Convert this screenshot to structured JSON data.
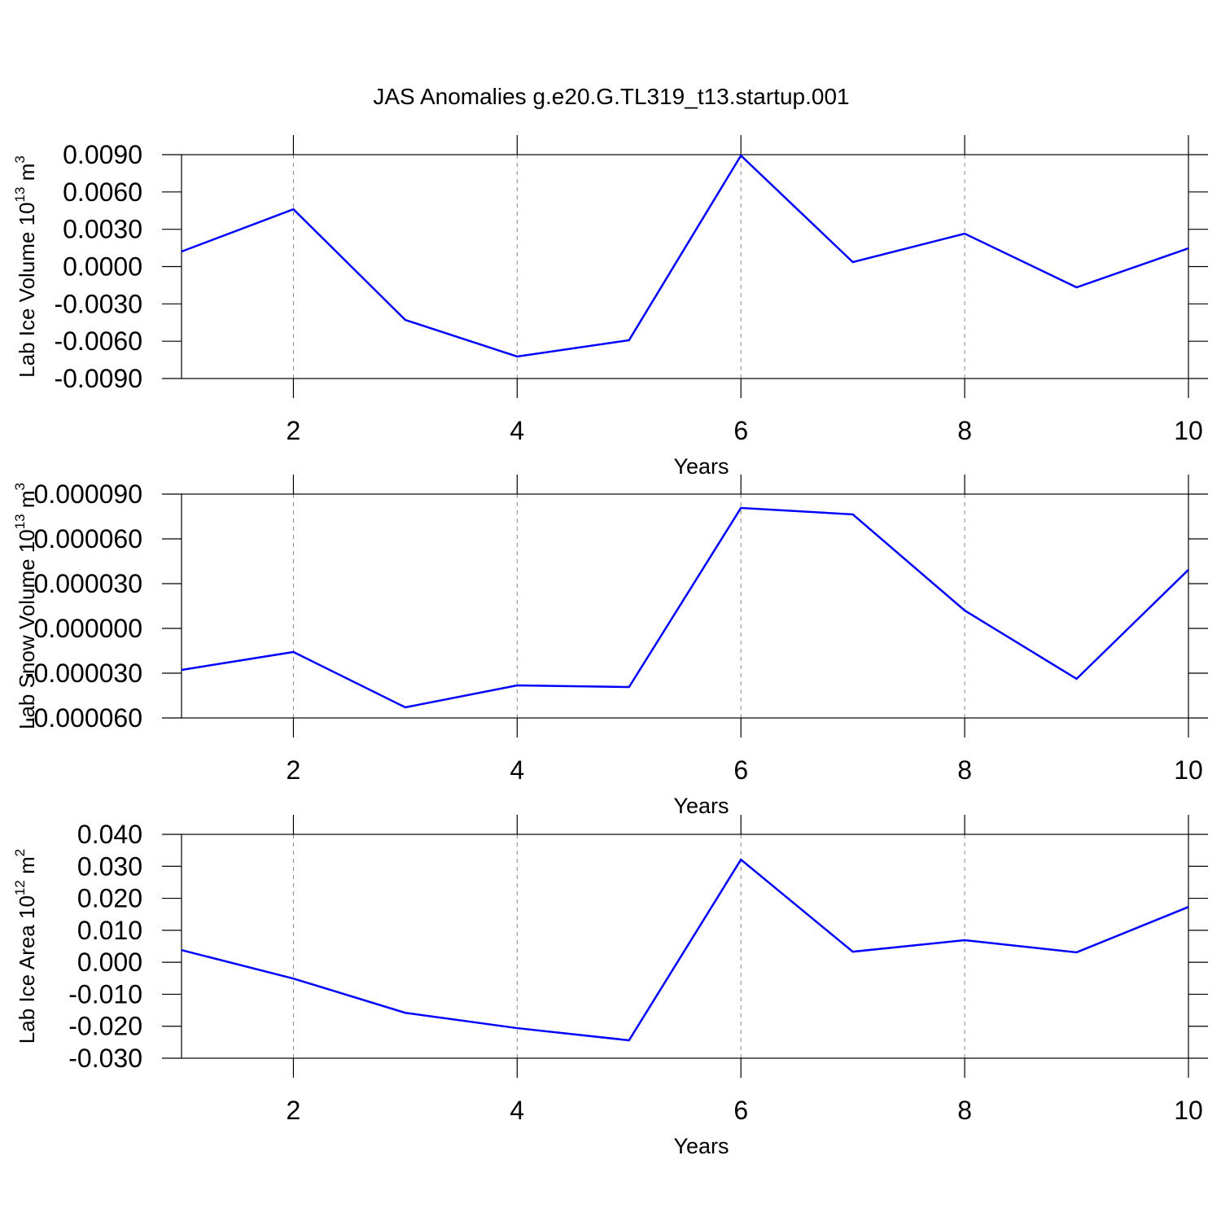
{
  "title": "JAS Anomalies g.e20.G.TL319_t13.startup.001",
  "chart_data": [
    {
      "type": "line",
      "xlabel": "Years",
      "ylabel": [
        "Lab Ice Volume 10",
        "13",
        " m",
        "3"
      ],
      "x": [
        1,
        2,
        3,
        4,
        5,
        6,
        7,
        8,
        9,
        10
      ],
      "series": [
        {
          "color": "#0000ff",
          "values": [
            0.00121,
            0.00461,
            -0.00429,
            -0.00723,
            -0.00592,
            0.00893,
            0.00036,
            0.00265,
            -0.00167,
            0.00147
          ]
        }
      ],
      "xlim": [
        1,
        10
      ],
      "xticks": [
        2,
        4,
        6,
        8,
        10
      ],
      "xgrid": true,
      "ylim": [
        -0.009,
        0.009
      ],
      "yticks": [
        {
          "value": 0.009,
          "label": "0.0090"
        },
        {
          "value": 0.006,
          "label": "0.0060"
        },
        {
          "value": 0.003,
          "label": "0.0030"
        },
        {
          "value": 0,
          "label": "0.0000"
        },
        {
          "value": -0.003,
          "label": "-0.0030"
        },
        {
          "value": -0.006,
          "label": "-0.0060"
        },
        {
          "value": -0.009,
          "label": "-0.0090"
        }
      ]
    },
    {
      "type": "line",
      "xlabel": "Years",
      "ylabel": [
        "Lab Snow Volume 10",
        "13",
        " m",
        "3"
      ],
      "x": [
        1,
        2,
        3,
        4,
        5,
        6,
        7,
        8,
        9,
        10
      ],
      "series": [
        {
          "color": "#0000ff",
          "values": [
            -2.78e-05,
            -1.58e-05,
            -5.29e-05,
            -3.82e-05,
            -3.93e-05,
            8.07e-05,
            7.64e-05,
            1.2e-05,
            -3.38e-05,
            3.93e-05
          ]
        }
      ],
      "xlim": [
        1,
        10
      ],
      "xticks": [
        2,
        4,
        6,
        8,
        10
      ],
      "xgrid": true,
      "ylim": [
        -6e-05,
        9e-05
      ],
      "yticks": [
        {
          "value": 9e-05,
          "label": "0.000090"
        },
        {
          "value": 6e-05,
          "label": "0.000060"
        },
        {
          "value": 3e-05,
          "label": "0.000030"
        },
        {
          "value": 0,
          "label": "0.000000"
        },
        {
          "value": -3e-05,
          "label": "-0.000030"
        },
        {
          "value": -6e-05,
          "label": "-0.000060"
        }
      ]
    },
    {
      "type": "line",
      "xlabel": "Years",
      "ylabel": [
        "Lab Ice Area 10",
        "12",
        " m",
        "2"
      ],
      "x": [
        1,
        2,
        3,
        4,
        5,
        6,
        7,
        8,
        9,
        10
      ],
      "series": [
        {
          "color": "#0000ff",
          "values": [
            0.0038,
            -0.0051,
            -0.0158,
            -0.0206,
            -0.0244,
            0.0321,
            0.0033,
            0.0069,
            0.0031,
            0.0173
          ]
        }
      ],
      "xlim": [
        1,
        10
      ],
      "xticks": [
        2,
        4,
        6,
        8,
        10
      ],
      "xgrid": true,
      "ylim": [
        -0.03,
        0.04
      ],
      "yticks": [
        {
          "value": 0.04,
          "label": "0.040"
        },
        {
          "value": 0.03,
          "label": "0.030"
        },
        {
          "value": 0.02,
          "label": "0.020"
        },
        {
          "value": 0.01,
          "label": "0.010"
        },
        {
          "value": 0,
          "label": "0.000"
        },
        {
          "value": -0.01,
          "label": "-0.010"
        },
        {
          "value": -0.02,
          "label": "-0.020"
        },
        {
          "value": -0.03,
          "label": "-0.030"
        }
      ]
    }
  ]
}
